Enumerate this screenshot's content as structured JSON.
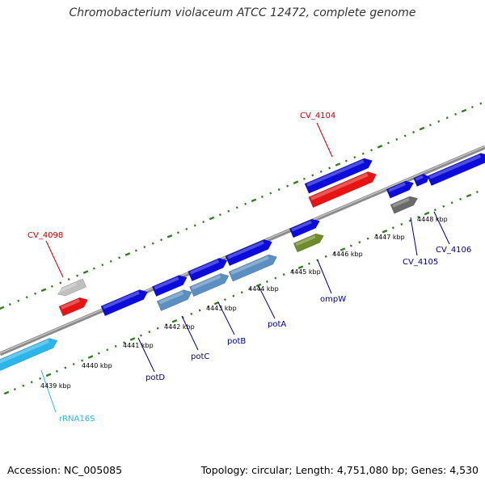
{
  "title": "Chromobacterium violaceum ATCC 12472, complete genome",
  "footer": {
    "accession": "Accession: NC_005085",
    "summary": "Topology: circular; Length: 4,751,080 bp; Genes: 4,530"
  },
  "scale_labels": [
    "4439 kbp",
    "4440 kbp",
    "4441 kbp",
    "4442 kbp",
    "4443 kbp",
    "4444 kbp",
    "4445 kbp",
    "4446 kbp",
    "4447 kbp",
    "4448 kbp"
  ],
  "gene_labels": {
    "cv_4104": "CV_4104",
    "cv_4098": "CV_4098",
    "cv_4105": "CV_4105",
    "cv_4106": "CV_4106",
    "rrna16s": "rRNA16S",
    "potD": "potD",
    "potC": "potC",
    "potB": "potB",
    "potA": "potA",
    "ompW": "ompW"
  },
  "colors": {
    "backbone": "#8c8c8c",
    "ticks": "#2e7d1e",
    "cds": "#0b0bdc",
    "highlight_cds": "#e81414",
    "operon": "#5b8fc1",
    "rrna": "#2cb5e8",
    "olive": "#6e8c2a",
    "grey_light": "#c0c0c0",
    "grey_dark": "#6a6a6a",
    "label_red": "#cc0000",
    "label_blue": "#00008b",
    "label_cyan": "#2cb5e8"
  }
}
